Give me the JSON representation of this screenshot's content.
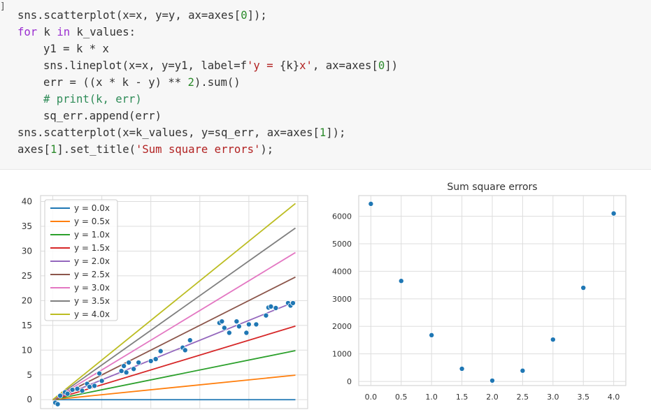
{
  "prompt": "]",
  "code": {
    "lines": [
      {
        "indent": 0,
        "tokens": [
          {
            "t": "sns.scatterplot(x=x, y=y, ax=axes[",
            "c": "pun"
          },
          {
            "t": "0",
            "c": "num"
          },
          {
            "t": "]);",
            "c": "pun"
          }
        ]
      },
      {
        "indent": 0,
        "tokens": [
          {
            "t": "for",
            "c": "kw"
          },
          {
            "t": " k ",
            "c": "pun"
          },
          {
            "t": "in",
            "c": "kw"
          },
          {
            "t": " k_values:",
            "c": "pun"
          }
        ]
      },
      {
        "indent": 1,
        "tokens": [
          {
            "t": "y1 = k * x",
            "c": "pun"
          }
        ]
      },
      {
        "indent": 1,
        "tokens": [
          {
            "t": "sns.lineplot(x=x, y=y1, label=f",
            "c": "pun"
          },
          {
            "t": "'y = ",
            "c": "str"
          },
          {
            "t": "{k}",
            "c": "pun"
          },
          {
            "t": "x'",
            "c": "str"
          },
          {
            "t": ", ax=axes[",
            "c": "pun"
          },
          {
            "t": "0",
            "c": "num"
          },
          {
            "t": "])",
            "c": "pun"
          }
        ]
      },
      {
        "indent": 1,
        "tokens": [
          {
            "t": "err = ((x * k - y) ** ",
            "c": "pun"
          },
          {
            "t": "2",
            "c": "num"
          },
          {
            "t": ").sum()",
            "c": "pun"
          }
        ]
      },
      {
        "indent": 1,
        "tokens": [
          {
            "t": "# print(k, err)",
            "c": "com"
          }
        ]
      },
      {
        "indent": 1,
        "tokens": [
          {
            "t": "sq_err.append(err)",
            "c": "pun"
          }
        ]
      },
      {
        "indent": 0,
        "tokens": [
          {
            "t": "sns.scatterplot(x=k_values, y=sq_err, ax=axes[",
            "c": "pun"
          },
          {
            "t": "1",
            "c": "num"
          },
          {
            "t": "]);",
            "c": "pun"
          }
        ]
      },
      {
        "indent": 0,
        "tokens": [
          {
            "t": "axes[",
            "c": "pun"
          },
          {
            "t": "1",
            "c": "num"
          },
          {
            "t": "].set_title(",
            "c": "pun"
          },
          {
            "t": "'Sum square errors'",
            "c": "str"
          },
          {
            "t": ");",
            "c": "pun"
          }
        ]
      }
    ]
  },
  "colors": {
    "c0": "#1f77b4",
    "c1": "#ff7f0e",
    "c2": "#2ca02c",
    "c3": "#d62728",
    "c4": "#9467bd",
    "c5": "#8c564b",
    "c6": "#e377c2",
    "c7": "#7f7f7f",
    "c8": "#bcbd22",
    "grid": "#dddddd",
    "spine": "#cccccc"
  },
  "chart_data": [
    {
      "type": "line",
      "title": "",
      "xlabel": "",
      "ylabel": "",
      "xlim": [
        -0.5,
        10.4
      ],
      "ylim": [
        -1.8,
        41.2
      ],
      "xticks": [
        0,
        2,
        4,
        6,
        8,
        10
      ],
      "yticks": [
        0,
        5,
        10,
        15,
        20,
        25,
        30,
        35,
        40
      ],
      "grid": true,
      "legend": "top-left",
      "series": [
        {
          "name": "y = 0.0x",
          "k": 0.0,
          "x": [
            0,
            9.9
          ],
          "color_key": "c0"
        },
        {
          "name": "y = 0.5x",
          "k": 0.5,
          "x": [
            0,
            9.9
          ],
          "color_key": "c1"
        },
        {
          "name": "y = 1.0x",
          "k": 1.0,
          "x": [
            0,
            9.9
          ],
          "color_key": "c2"
        },
        {
          "name": "y = 1.5x",
          "k": 1.5,
          "x": [
            0,
            9.9
          ],
          "color_key": "c3"
        },
        {
          "name": "y = 2.0x",
          "k": 2.0,
          "x": [
            0,
            9.9
          ],
          "color_key": "c4"
        },
        {
          "name": "y = 2.5x",
          "k": 2.5,
          "x": [
            0,
            9.9
          ],
          "color_key": "c5"
        },
        {
          "name": "y = 3.0x",
          "k": 3.0,
          "x": [
            0,
            9.9
          ],
          "color_key": "c6"
        },
        {
          "name": "y = 3.5x",
          "k": 3.5,
          "x": [
            0,
            9.9
          ],
          "color_key": "c7"
        },
        {
          "name": "y = 4.0x",
          "k": 4.0,
          "x": [
            0,
            9.9
          ],
          "color_key": "c8"
        }
      ],
      "scatter": {
        "x": [
          0.1,
          0.2,
          0.3,
          0.5,
          0.6,
          0.8,
          1.0,
          1.2,
          1.4,
          1.5,
          1.7,
          1.9,
          2.0,
          2.8,
          2.9,
          3.0,
          3.1,
          3.3,
          3.5,
          4.0,
          4.2,
          4.4,
          5.3,
          5.4,
          5.6,
          6.8,
          6.9,
          7.0,
          7.2,
          7.5,
          7.6,
          7.9,
          8.0,
          8.3,
          8.7,
          8.8,
          8.9,
          9.1,
          9.6,
          9.7,
          9.8
        ],
        "y": [
          -0.6,
          -0.9,
          0.8,
          1.5,
          1.2,
          2.0,
          2.2,
          1.8,
          3.2,
          2.6,
          2.8,
          5.3,
          3.8,
          5.8,
          6.8,
          5.5,
          7.5,
          6.2,
          7.5,
          7.8,
          8.2,
          9.8,
          10.5,
          10.0,
          12.0,
          15.5,
          15.8,
          14.5,
          13.5,
          15.8,
          14.8,
          13.5,
          15.2,
          15.2,
          17.0,
          18.6,
          18.8,
          18.5,
          19.5,
          19.0,
          19.5
        ]
      }
    },
    {
      "type": "scatter",
      "title": "Sum square errors",
      "xlabel": "",
      "ylabel": "",
      "xlim": [
        -0.2,
        4.2
      ],
      "ylim": [
        -150,
        6750
      ],
      "xticks": [
        0.0,
        0.5,
        1.0,
        1.5,
        2.0,
        2.5,
        3.0,
        3.5,
        4.0
      ],
      "xtick_labels": [
        "0.0",
        "0.5",
        "1.0",
        "1.5",
        "2.0",
        "2.5",
        "3.0",
        "3.5",
        "4.0"
      ],
      "yticks": [
        0,
        1000,
        2000,
        3000,
        4000,
        5000,
        6000
      ],
      "grid": true,
      "x": [
        0.0,
        0.5,
        1.0,
        1.5,
        2.0,
        2.5,
        3.0,
        3.5,
        4.0
      ],
      "y": [
        6450,
        3650,
        1680,
        460,
        30,
        390,
        1520,
        3400,
        6100
      ]
    }
  ]
}
